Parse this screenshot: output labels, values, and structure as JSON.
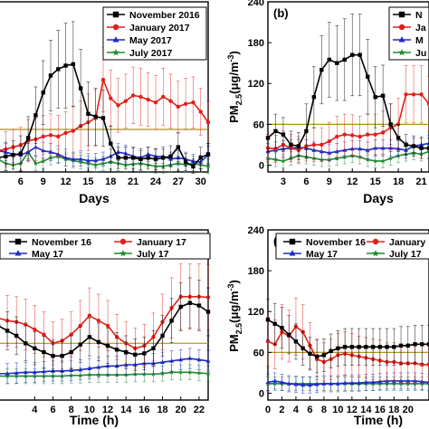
{
  "colors": {
    "black": "#000000",
    "red": "#e0201b",
    "blue": "#1f2ac8",
    "green": "#1e8c2a",
    "limit": "#a89520"
  },
  "chart_data": [
    {
      "panel": "a",
      "type": "line",
      "title": "",
      "xlabel": "Days",
      "ylabel": "",
      "xlim": [
        3,
        31
      ],
      "ylim": [
        0,
        240
      ],
      "xticks": [
        "6",
        "9",
        "12",
        "15",
        "18",
        "21",
        "24",
        "27",
        "30"
      ],
      "yticks": [],
      "reference_line": 60,
      "legend_position": "top-right",
      "legend": [
        "November 2016",
        "January 2017",
        "May 2017",
        "July 2017"
      ],
      "x": [
        3,
        4,
        5,
        6,
        7,
        8,
        9,
        10,
        11,
        12,
        13,
        14,
        15,
        16,
        17,
        18,
        19,
        20,
        21,
        22,
        23,
        24,
        25,
        26,
        27,
        28,
        29,
        30,
        31
      ],
      "series": [
        {
          "name": "November 2016",
          "color": "black",
          "marker": "square",
          "values": [
            20,
            22,
            24,
            26,
            48,
            80,
            112,
            136,
            145,
            150,
            152,
            118,
            82,
            78,
            76,
            40,
            20,
            20,
            20,
            18,
            20,
            18,
            20,
            22,
            35,
            14,
            8,
            20,
            25
          ],
          "errors": [
            20,
            20,
            20,
            25,
            30,
            40,
            45,
            50,
            55,
            60,
            60,
            55,
            45,
            40,
            40,
            25,
            15,
            15,
            15,
            15,
            15,
            15,
            15,
            15,
            20,
            12,
            10,
            15,
            15
          ]
        },
        {
          "name": "January 2017",
          "color": "red",
          "marker": "circle",
          "values": [
            30,
            32,
            35,
            38,
            44,
            46,
            50,
            52,
            50,
            55,
            58,
            65,
            70,
            76,
            130,
            104,
            94,
            100,
            108,
            106,
            102,
            98,
            106,
            100,
            92,
            96,
            98,
            85,
            70
          ],
          "errors": [
            25,
            25,
            25,
            25,
            30,
            30,
            30,
            30,
            30,
            30,
            35,
            35,
            40,
            40,
            45,
            40,
            38,
            38,
            40,
            40,
            38,
            38,
            40,
            38,
            36,
            36,
            36,
            33,
            30
          ]
        },
        {
          "name": "May 2017",
          "color": "blue",
          "marker": "triangle",
          "values": [
            30,
            28,
            25,
            24,
            28,
            35,
            30,
            28,
            25,
            20,
            18,
            18,
            16,
            16,
            18,
            22,
            28,
            26,
            22,
            20,
            25,
            22,
            22,
            18,
            20,
            18,
            15,
            14,
            24
          ],
          "errors": [
            12,
            12,
            12,
            12,
            12,
            12,
            12,
            12,
            12,
            12,
            10,
            10,
            10,
            10,
            10,
            10,
            12,
            12,
            12,
            10,
            10,
            10,
            10,
            10,
            10,
            10,
            10,
            10,
            12
          ]
        },
        {
          "name": "July 2017",
          "color": "green",
          "marker": "star",
          "values": [
            18,
            12,
            10,
            12,
            28,
            12,
            15,
            20,
            22,
            18,
            16,
            14,
            12,
            10,
            12,
            14,
            12,
            10,
            11,
            12,
            10,
            8,
            8,
            10,
            12,
            10,
            12,
            10,
            8
          ],
          "errors": [
            10,
            10,
            10,
            10,
            12,
            10,
            10,
            10,
            10,
            10,
            10,
            10,
            10,
            10,
            10,
            10,
            10,
            10,
            10,
            10,
            10,
            10,
            10,
            10,
            10,
            10,
            10,
            10,
            10
          ]
        }
      ]
    },
    {
      "panel": "b",
      "type": "line",
      "title": "",
      "xlabel": "Days",
      "ylabel": "PM2.5(μg/m-3)",
      "xlim": [
        1,
        22
      ],
      "ylim": [
        -10,
        240
      ],
      "xticks": [
        "3",
        "6",
        "9",
        "12",
        "15",
        "18",
        "21"
      ],
      "yticks": [
        "0",
        "60",
        "120",
        "180",
        "240"
      ],
      "reference_line": 60,
      "legend_position": "top-right",
      "legend": [
        "N",
        "Ja",
        "M",
        "Ju"
      ],
      "x": [
        1,
        2,
        3,
        4,
        5,
        6,
        7,
        8,
        9,
        10,
        11,
        12,
        13,
        14,
        15,
        16,
        17,
        18,
        19,
        20,
        21,
        22
      ],
      "series": [
        {
          "name": "N",
          "color": "black",
          "marker": "square",
          "values": [
            40,
            50,
            45,
            30,
            28,
            50,
            100,
            140,
            155,
            150,
            155,
            162,
            162,
            130,
            100,
            102,
            60,
            40,
            30,
            28,
            25,
            25
          ],
          "errors": [
            20,
            25,
            25,
            20,
            20,
            40,
            45,
            50,
            55,
            55,
            60,
            60,
            60,
            55,
            45,
            45,
            30,
            20,
            15,
            15,
            15,
            15
          ]
        },
        {
          "name": "Ja",
          "color": "red",
          "marker": "circle",
          "values": [
            25,
            24,
            30,
            25,
            22,
            28,
            30,
            30,
            35,
            42,
            45,
            44,
            42,
            45,
            45,
            48,
            55,
            60,
            104,
            104,
            104,
            90
          ],
          "errors": [
            20,
            20,
            20,
            20,
            20,
            22,
            25,
            25,
            28,
            30,
            30,
            30,
            30,
            30,
            30,
            32,
            35,
            38,
            42,
            42,
            42,
            40
          ]
        },
        {
          "name": "M",
          "color": "blue",
          "marker": "triangle",
          "values": [
            20,
            22,
            24,
            25,
            26,
            25,
            22,
            20,
            18,
            20,
            22,
            24,
            24,
            22,
            25,
            25,
            25,
            24,
            22,
            28,
            30,
            32
          ],
          "errors": [
            12,
            12,
            12,
            12,
            12,
            12,
            12,
            12,
            12,
            12,
            12,
            12,
            12,
            12,
            12,
            12,
            12,
            12,
            12,
            12,
            12,
            12
          ]
        },
        {
          "name": "Ju",
          "color": "green",
          "marker": "star",
          "values": [
            10,
            8,
            6,
            10,
            14,
            12,
            10,
            8,
            8,
            10,
            12,
            14,
            12,
            8,
            6,
            6,
            10,
            14,
            16,
            18,
            16,
            20
          ],
          "errors": [
            10,
            10,
            10,
            10,
            10,
            10,
            10,
            10,
            10,
            10,
            10,
            10,
            10,
            10,
            10,
            10,
            10,
            10,
            10,
            10,
            10,
            10
          ]
        }
      ]
    },
    {
      "panel": "c",
      "type": "line",
      "title": "",
      "xlabel": "Time (h)",
      "ylabel": "",
      "xlim": [
        0,
        23
      ],
      "ylim": [
        -30,
        240
      ],
      "xticks": [
        "4",
        "6",
        "8",
        "10",
        "12",
        "14",
        "16",
        "18",
        "20",
        "22"
      ],
      "yticks": [],
      "reference_line": 60,
      "legend_position": "top",
      "legend": [
        "November 16",
        "January 17",
        "May 17",
        "July 17"
      ],
      "x": [
        0,
        1,
        2,
        3,
        4,
        5,
        6,
        7,
        8,
        9,
        10,
        11,
        12,
        13,
        14,
        15,
        16,
        17,
        18,
        19,
        20,
        21,
        22,
        23
      ],
      "series": [
        {
          "name": "November 16",
          "color": "black",
          "marker": "square",
          "values": [
            88,
            80,
            72,
            60,
            52,
            46,
            40,
            40,
            46,
            58,
            70,
            62,
            56,
            50,
            46,
            42,
            44,
            52,
            72,
            96,
            118,
            124,
            120,
            110
          ],
          "errors": [
            30,
            30,
            30,
            28,
            26,
            25,
            25,
            25,
            26,
            28,
            30,
            30,
            28,
            27,
            26,
            25,
            26,
            28,
            32,
            35,
            38,
            40,
            40,
            38
          ]
        },
        {
          "name": "January 17",
          "color": "red",
          "marker": "circle",
          "values": [
            100,
            96,
            94,
            90,
            82,
            74,
            60,
            64,
            74,
            88,
            104,
            96,
            88,
            70,
            60,
            52,
            56,
            70,
            94,
            116,
            134,
            134,
            134,
            133
          ],
          "errors": [
            40,
            40,
            40,
            40,
            38,
            36,
            34,
            34,
            36,
            40,
            44,
            42,
            40,
            36,
            34,
            32,
            34,
            38,
            44,
            48,
            52,
            52,
            52,
            52
          ]
        },
        {
          "name": "May 17",
          "color": "blue",
          "marker": "triangle",
          "values": [
            12,
            12,
            13,
            14,
            14,
            15,
            16,
            16,
            17,
            18,
            20,
            22,
            24,
            24,
            26,
            26,
            28,
            28,
            30,
            32,
            34,
            36,
            34,
            32
          ],
          "errors": [
            16,
            16,
            16,
            16,
            16,
            16,
            16,
            16,
            16,
            16,
            16,
            16,
            16,
            16,
            16,
            16,
            16,
            16,
            16,
            16,
            16,
            16,
            16,
            16
          ]
        },
        {
          "name": "July 17",
          "color": "green",
          "marker": "star",
          "values": [
            8,
            8,
            8,
            8,
            8,
            8,
            8,
            8,
            9,
            9,
            10,
            10,
            10,
            10,
            10,
            11,
            11,
            11,
            12,
            14,
            14,
            14,
            13,
            12
          ],
          "errors": [
            12,
            12,
            12,
            12,
            12,
            12,
            12,
            12,
            12,
            12,
            12,
            12,
            12,
            12,
            12,
            12,
            12,
            12,
            12,
            12,
            12,
            12,
            12,
            12
          ]
        }
      ]
    },
    {
      "panel": "d",
      "type": "line",
      "title": "",
      "xlabel": "Time (h)",
      "ylabel": "PM2.5(μg/m-3)",
      "xlim": [
        0,
        23
      ],
      "ylim": [
        -10,
        240
      ],
      "xticks": [
        "0",
        "2",
        "4",
        "6",
        "8",
        "10",
        "12",
        "14",
        "16",
        "18",
        "20"
      ],
      "yticks": [
        "0",
        "60",
        "120",
        "180",
        "240"
      ],
      "reference_line": 60,
      "legend_position": "top",
      "legend": [
        "November 16",
        "January",
        "May 17",
        "July 17"
      ],
      "x": [
        0,
        1,
        2,
        3,
        4,
        5,
        6,
        7,
        8,
        9,
        10,
        11,
        12,
        13,
        14,
        15,
        16,
        17,
        18,
        19,
        20,
        21,
        22,
        23
      ],
      "series": [
        {
          "name": "November 16",
          "color": "black",
          "marker": "square",
          "values": [
            108,
            102,
            96,
            86,
            76,
            66,
            58,
            54,
            56,
            62,
            66,
            68,
            68,
            68,
            68,
            68,
            68,
            68,
            68,
            70,
            70,
            72,
            72,
            72
          ],
          "errors": [
            30,
            30,
            30,
            28,
            26,
            25,
            24,
            24,
            24,
            25,
            26,
            27,
            27,
            27,
            27,
            27,
            27,
            27,
            27,
            28,
            28,
            28,
            28,
            28
          ]
        },
        {
          "name": "January",
          "color": "red",
          "marker": "circle",
          "values": [
            76,
            72,
            90,
            84,
            98,
            90,
            70,
            50,
            46,
            50,
            56,
            58,
            56,
            54,
            52,
            50,
            48,
            46,
            46,
            44,
            44,
            44,
            42,
            42
          ],
          "errors": [
            36,
            36,
            40,
            38,
            42,
            40,
            34,
            30,
            28,
            30,
            32,
            32,
            32,
            30,
            30,
            30,
            30,
            28,
            28,
            28,
            28,
            28,
            28,
            28
          ]
        },
        {
          "name": "May 17",
          "color": "blue",
          "marker": "triangle",
          "values": [
            16,
            18,
            16,
            14,
            13,
            12,
            12,
            13,
            14,
            14,
            14,
            15,
            15,
            15,
            16,
            16,
            17,
            18,
            18,
            18,
            18,
            18,
            17,
            16
          ],
          "errors": [
            12,
            12,
            12,
            12,
            12,
            12,
            12,
            12,
            12,
            12,
            12,
            12,
            12,
            12,
            12,
            12,
            12,
            12,
            12,
            12,
            12,
            12,
            12,
            12
          ]
        },
        {
          "name": "July 17",
          "color": "green",
          "marker": "star",
          "values": [
            14,
            14,
            14,
            14,
            14,
            14,
            14,
            14,
            14,
            14,
            14,
            14,
            14,
            14,
            14,
            14,
            14,
            14,
            14,
            14,
            14,
            14,
            14,
            14
          ],
          "errors": [
            10,
            10,
            10,
            10,
            10,
            10,
            10,
            10,
            10,
            10,
            10,
            10,
            10,
            10,
            10,
            10,
            10,
            10,
            10,
            10,
            10,
            10,
            10,
            10
          ]
        }
      ]
    }
  ]
}
